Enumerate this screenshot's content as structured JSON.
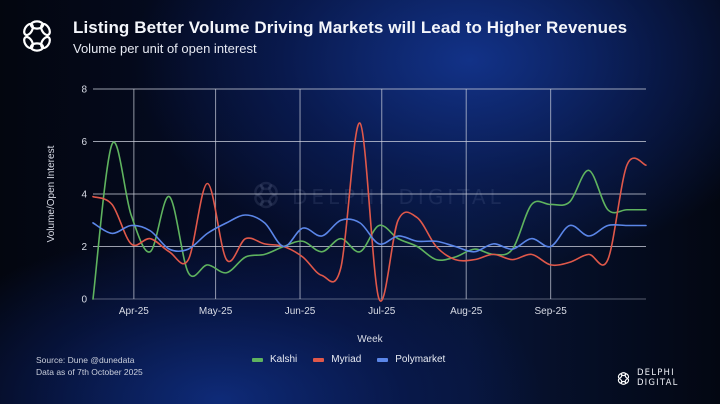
{
  "header": {
    "title": "Listing Better Volume Driving Markets will Lead to Higher Revenues",
    "subtitle": "Volume per unit of open interest",
    "logo_icon": "delphi-knot-logo-icon"
  },
  "watermark": "DELPHI DIGITAL",
  "footer": {
    "source_line1": "Source: Dune @dunedata",
    "source_line2": "Data as of 7th October 2025",
    "brand": "DELPHI DIGITAL"
  },
  "chart_data": {
    "type": "line",
    "title": "Listing Better Volume Driving Markets will Lead to Higher Revenues",
    "subtitle": "Volume per unit of open interest",
    "xlabel": "Week",
    "ylabel": "Volume/Open Interest",
    "ylim": [
      0,
      8
    ],
    "yticks": [
      0,
      2,
      4,
      6,
      8
    ],
    "x_start": "2025-03-17",
    "x_end": "2025-10-06",
    "xticks": [
      {
        "label": "Apr-25",
        "date": "2025-04-01"
      },
      {
        "label": "May-25",
        "date": "2025-05-01"
      },
      {
        "label": "Jun-25",
        "date": "2025-06-01"
      },
      {
        "label": "Jul-25",
        "date": "2025-07-01"
      },
      {
        "label": "Aug-25",
        "date": "2025-08-01"
      },
      {
        "label": "Sep-25",
        "date": "2025-09-01"
      }
    ],
    "grid": true,
    "legend_position": "bottom-center",
    "x": [
      "2025-03-17",
      "2025-03-24",
      "2025-03-31",
      "2025-04-07",
      "2025-04-14",
      "2025-04-21",
      "2025-04-28",
      "2025-05-05",
      "2025-05-12",
      "2025-05-19",
      "2025-05-26",
      "2025-06-02",
      "2025-06-09",
      "2025-06-16",
      "2025-06-23",
      "2025-06-30",
      "2025-07-07",
      "2025-07-14",
      "2025-07-21",
      "2025-07-28",
      "2025-08-04",
      "2025-08-11",
      "2025-08-18",
      "2025-08-25",
      "2025-09-01",
      "2025-09-08",
      "2025-09-15",
      "2025-09-22",
      "2025-09-29",
      "2025-10-06"
    ],
    "series": [
      {
        "name": "Kalshi",
        "color": "#5fb35f",
        "values": [
          0.0,
          5.9,
          3.2,
          1.8,
          3.9,
          1.0,
          1.3,
          1.0,
          1.6,
          1.7,
          2.0,
          2.2,
          1.8,
          2.3,
          1.8,
          2.8,
          2.3,
          2.0,
          1.5,
          1.6,
          1.9,
          1.7,
          1.9,
          3.6,
          3.6,
          3.7,
          4.9,
          3.4,
          3.4,
          3.4
        ]
      },
      {
        "name": "Myriad",
        "color": "#e0584a",
        "values": [
          3.9,
          3.6,
          2.1,
          2.3,
          1.8,
          1.5,
          4.4,
          1.5,
          2.3,
          2.1,
          2.0,
          1.6,
          0.9,
          1.2,
          6.7,
          0.0,
          3.0,
          3.1,
          2.0,
          1.5,
          1.5,
          1.7,
          1.5,
          1.7,
          1.3,
          1.4,
          1.7,
          1.5,
          5.1,
          5.1
        ]
      },
      {
        "name": "Polymarket",
        "color": "#5b86e8",
        "values": [
          2.9,
          2.5,
          2.8,
          2.6,
          1.9,
          1.9,
          2.5,
          2.9,
          3.2,
          2.9,
          2.0,
          2.7,
          2.4,
          3.0,
          2.9,
          2.1,
          2.4,
          2.2,
          2.2,
          2.0,
          1.8,
          2.1,
          1.9,
          2.3,
          2.0,
          2.8,
          2.4,
          2.8,
          2.8,
          2.8
        ]
      }
    ]
  }
}
